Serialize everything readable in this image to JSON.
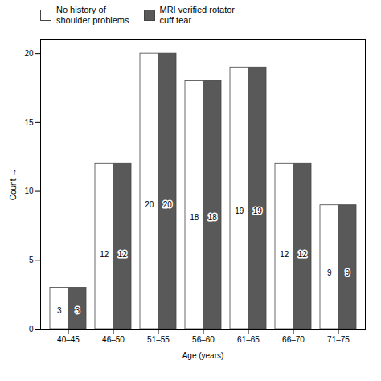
{
  "chart_data": {
    "type": "bar",
    "categories": [
      "40–45",
      "46–50",
      "51–55",
      "56–60",
      "61–65",
      "66–70",
      "71–75"
    ],
    "series": [
      {
        "name": "No history of\nshoulder problems",
        "color": "#ffffff",
        "values": [
          3,
          12,
          20,
          18,
          19,
          12,
          9
        ]
      },
      {
        "name": "MRI verified rotator\ncuff tear",
        "color": "#595959",
        "values": [
          3,
          12,
          20,
          18,
          19,
          12,
          9
        ]
      }
    ],
    "xlabel": "Age (years)",
    "ylabel": "Count",
    "ylim": [
      0,
      21
    ],
    "yticks": [
      0,
      5,
      10,
      15,
      20
    ],
    "legend": "upper left",
    "data_labels": true
  }
}
